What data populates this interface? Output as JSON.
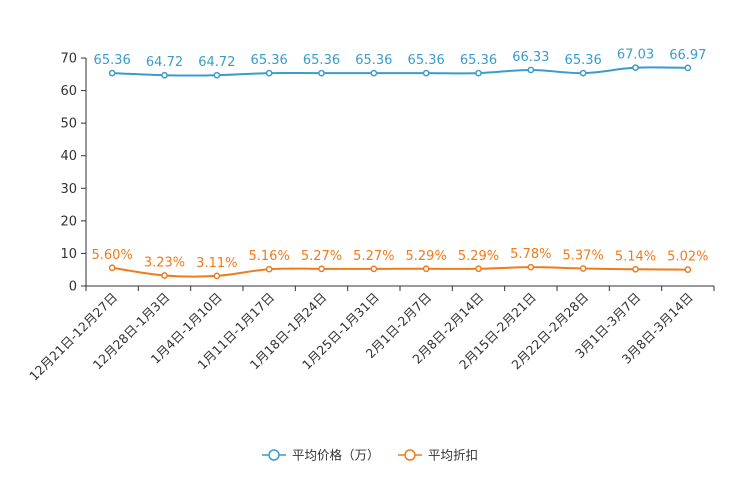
{
  "chart_data": {
    "type": "line",
    "title": "",
    "xlabel": "",
    "ylabel": "",
    "ylim": [
      0,
      70
    ],
    "yticks": [
      0,
      10,
      20,
      30,
      40,
      50,
      60,
      70
    ],
    "grid": false,
    "legend_position": "bottom-center",
    "categories": [
      "12月21日-12月27日",
      "12月28日-1月3日",
      "1月4日-1月10日",
      "1月11日-1月17日",
      "1月18日-1月24日",
      "1月25日-1月31日",
      "2月1日-2月7日",
      "2月8日-2月14日",
      "2月15日-2月21日",
      "2月22日-2月28日",
      "3月1日-3月7日",
      "3月8日-3月14日"
    ],
    "series": [
      {
        "name": "平均价格（万）",
        "color": "#3a9ccc",
        "values": [
          65.36,
          64.72,
          64.72,
          65.36,
          65.36,
          65.36,
          65.36,
          65.36,
          66.33,
          65.36,
          67.03,
          66.97
        ],
        "labels": [
          "65.36",
          "64.72",
          "64.72",
          "65.36",
          "65.36",
          "65.36",
          "65.36",
          "65.36",
          "66.33",
          "65.36",
          "67.03",
          "66.97"
        ]
      },
      {
        "name": "平均折扣",
        "color": "#f07b1d",
        "values": [
          5.6,
          3.23,
          3.11,
          5.16,
          5.27,
          5.27,
          5.29,
          5.29,
          5.78,
          5.37,
          5.14,
          5.02
        ],
        "labels": [
          "5.60%",
          "3.23%",
          "3.11%",
          "5.16%",
          "5.27%",
          "5.27%",
          "5.29%",
          "5.29%",
          "5.78%",
          "5.37%",
          "5.14%",
          "5.02%"
        ]
      }
    ]
  }
}
